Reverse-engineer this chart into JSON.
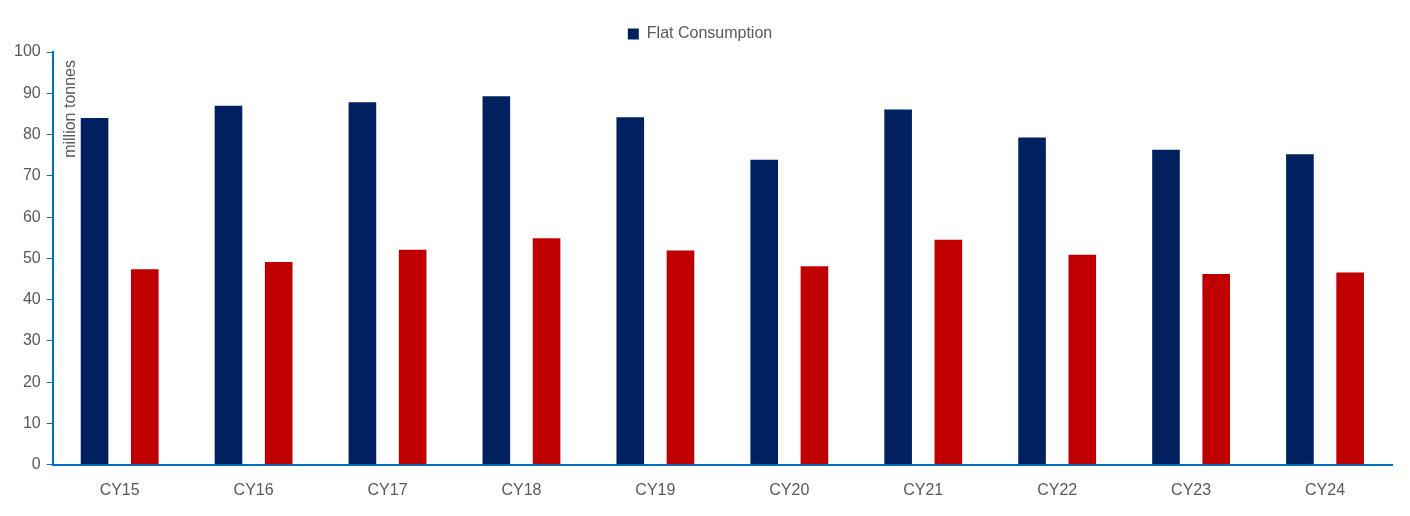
{
  "chart_data": {
    "type": "bar",
    "ylabel": "million tonnes",
    "categories": [
      "CY15",
      "CY16",
      "CY17",
      "CY18",
      "CY19",
      "CY20",
      "CY21",
      "CY22",
      "CY23",
      "CY24"
    ],
    "series": [
      {
        "name": "Flat Consumption",
        "color": "#002060",
        "values": [
          84.0,
          87.0,
          87.8,
          89.3,
          84.2,
          73.9,
          86.1,
          79.3,
          76.3,
          75.2
        ]
      },
      {
        "color": "#c00000",
        "values": [
          47.4,
          49.1,
          52.1,
          54.9,
          51.9,
          48.1,
          54.5,
          50.9,
          46.2,
          46.6
        ]
      }
    ],
    "ylim": [
      0,
      100
    ],
    "yticks": [
      0,
      10,
      20,
      30,
      40,
      50,
      60,
      70,
      80,
      90,
      100
    ],
    "grid": false,
    "legend": "top"
  }
}
